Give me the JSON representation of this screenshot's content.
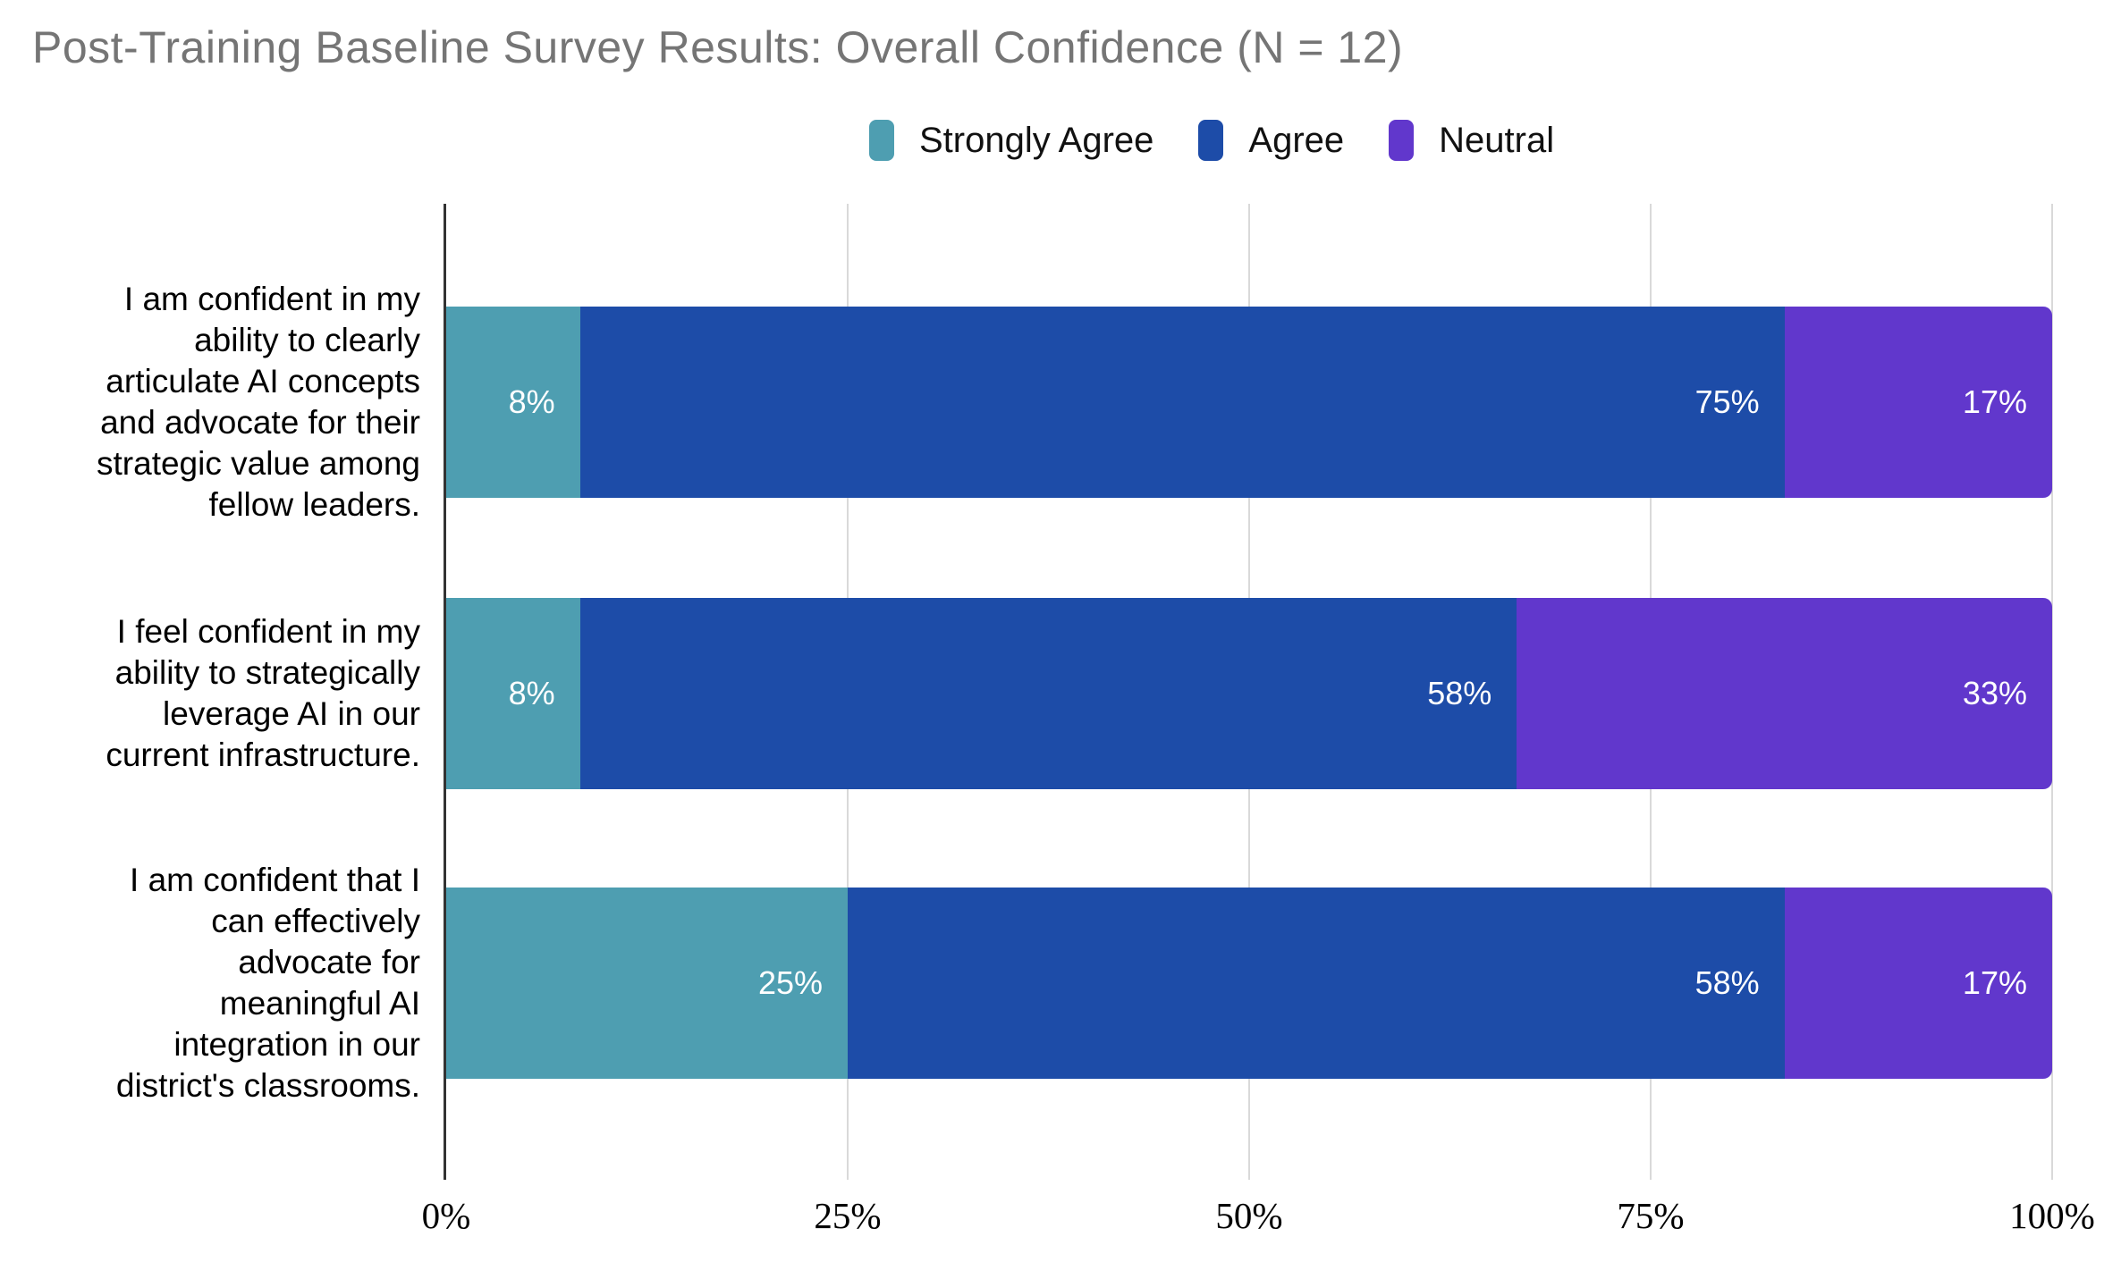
{
  "title": "Post-Training Baseline Survey Results: Overall Confidence (N = 12)",
  "colors": {
    "strongly_agree": "#4E9EB1",
    "agree": "#1D4CA8",
    "neutral": "#6137CC",
    "title_text": "#757575",
    "gridline": "#D9D9D9",
    "axis_line": "#333333",
    "bar_label_text": "#FFFFFF",
    "background": "#FFFFFF"
  },
  "legend": {
    "items": [
      {
        "label": "Strongly Agree",
        "color": "#4E9EB1"
      },
      {
        "label": "Agree",
        "color": "#1D4CA8"
      },
      {
        "label": "Neutral",
        "color": "#6137CC"
      }
    ]
  },
  "chart_data": {
    "type": "bar",
    "orientation": "horizontal",
    "stacked": true,
    "title": "Post-Training Baseline Survey Results: Overall Confidence (N = 12)",
    "legend_position": "top",
    "grid": "vertical",
    "categories": [
      "I am confident in my ability to clearly articulate AI concepts and advocate for their strategic value among fellow leaders.",
      "I feel confident in my ability to strategically leverage AI in our current infrastructure.",
      "I am confident that I can effectively advocate for meaningful AI integration in our district's classrooms."
    ],
    "categories_lines": [
      [
        "I am confident in my",
        "ability to clearly",
        "articulate AI concepts",
        "and advocate for their",
        "strategic value among",
        "fellow leaders."
      ],
      [
        "I feel confident in my",
        "ability to strategically",
        "leverage AI in our",
        "current infrastructure."
      ],
      [
        "I am confident that I",
        "can effectively",
        "advocate for",
        "meaningful AI",
        "integration in our",
        "district's classrooms."
      ]
    ],
    "series": [
      {
        "name": "Strongly Agree",
        "color": "#4E9EB1",
        "values": [
          8,
          8,
          25
        ],
        "labels": [
          "8%",
          "8%",
          "25%"
        ]
      },
      {
        "name": "Agree",
        "color": "#1D4CA8",
        "values": [
          75,
          58,
          58
        ],
        "labels": [
          "75%",
          "58%",
          "58%"
        ]
      },
      {
        "name": "Neutral",
        "color": "#6137CC",
        "values": [
          17,
          33,
          17
        ],
        "labels": [
          "17%",
          "33%",
          "17%"
        ]
      }
    ],
    "values_exact_pct": [
      [
        8.333,
        75.0,
        16.667
      ],
      [
        8.333,
        58.333,
        33.334
      ],
      [
        25.0,
        58.333,
        16.667
      ]
    ],
    "x_axis": {
      "ticks": [
        "0%",
        "25%",
        "50%",
        "75%",
        "100%"
      ],
      "tick_values": [
        0,
        25,
        50,
        75,
        100
      ],
      "range": [
        0,
        100
      ]
    }
  }
}
